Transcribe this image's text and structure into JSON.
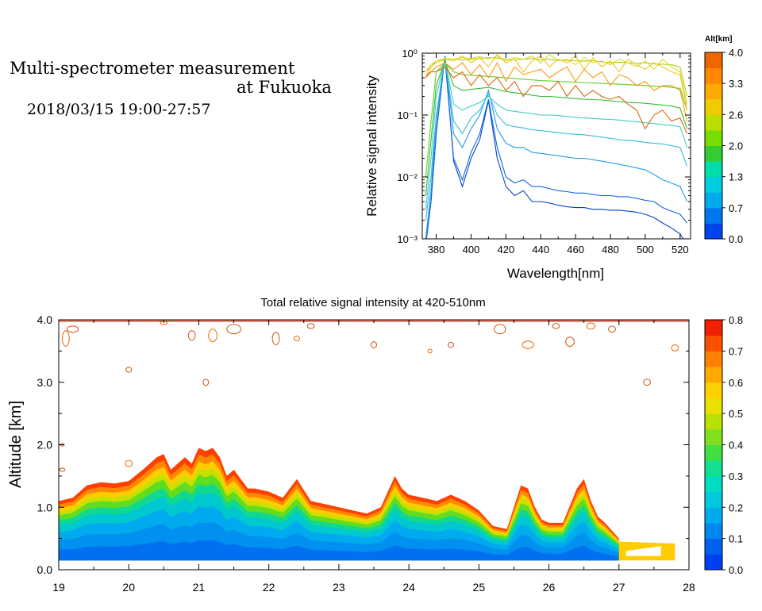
{
  "header": {
    "title_line1": "Multi-spectrometer measurement",
    "title_line2": "at Fukuoka",
    "datetime": "2018/03/15 19:00-27:57"
  },
  "chart_data": [
    {
      "type": "line",
      "xlabel": "Wavelength[nm]",
      "ylabel": "Relative signal intensity",
      "x_ticks": [
        "380",
        "400",
        "420",
        "440",
        "460",
        "480",
        "500",
        "520"
      ],
      "y_ticks": [
        "10⁻³",
        "10⁻²",
        "10⁻¹",
        "10⁰"
      ],
      "xlim": [
        372,
        526
      ],
      "ylim": [
        0.001,
        1
      ],
      "y_scale": "log",
      "colorbar": {
        "title": "Alt[km]",
        "tick_labels": [
          "0.0",
          "0.7",
          "1.3",
          "2.0",
          "2.6",
          "3.3",
          "4.0"
        ],
        "colors": [
          "#0044ee",
          "#0077ee",
          "#00aaee",
          "#00ccdd",
          "#00ddaa",
          "#33cc33",
          "#77dd00",
          "#bbdd00",
          "#eecc00",
          "#ffaa00",
          "#ff8800",
          "#ee6600"
        ]
      },
      "x": [
        374,
        377,
        380,
        385,
        390,
        395,
        400,
        405,
        410,
        415,
        420,
        425,
        430,
        435,
        440,
        445,
        450,
        455,
        460,
        465,
        470,
        475,
        480,
        485,
        490,
        495,
        500,
        505,
        510,
        515,
        520,
        524
      ],
      "series": [
        {
          "color": "#0044cc",
          "values": [
            0.0008,
            0.004,
            0.05,
            0.9,
            0.018,
            0.007,
            0.02,
            0.04,
            0.17,
            0.02,
            0.007,
            0.005,
            0.006,
            0.004,
            0.004,
            0.0038,
            0.0035,
            0.0033,
            0.0032,
            0.0032,
            0.003,
            0.003,
            0.0029,
            0.0029,
            0.0028,
            0.0027,
            0.0025,
            0.0022,
            0.0018,
            0.0015,
            0.0012,
            0.0008
          ]
        },
        {
          "color": "#1166dd",
          "values": [
            0.0008,
            0.004,
            0.05,
            0.9,
            0.02,
            0.009,
            0.025,
            0.05,
            0.18,
            0.03,
            0.01,
            0.008,
            0.009,
            0.007,
            0.007,
            0.0065,
            0.006,
            0.0058,
            0.0055,
            0.0055,
            0.0052,
            0.005,
            0.005,
            0.0048,
            0.0048,
            0.0045,
            0.0042,
            0.004,
            0.0032,
            0.0028,
            0.0025,
            0.0018
          ]
        },
        {
          "color": "#2299ee",
          "values": [
            0.001,
            0.006,
            0.08,
            0.9,
            0.05,
            0.03,
            0.06,
            0.1,
            0.25,
            0.06,
            0.035,
            0.03,
            0.03,
            0.025,
            0.024,
            0.023,
            0.022,
            0.021,
            0.02,
            0.02,
            0.019,
            0.018,
            0.017,
            0.016,
            0.015,
            0.014,
            0.013,
            0.011,
            0.009,
            0.008,
            0.007,
            0.004
          ]
        },
        {
          "color": "#33bbdd",
          "values": [
            0.002,
            0.01,
            0.1,
            0.85,
            0.08,
            0.05,
            0.09,
            0.12,
            0.22,
            0.1,
            0.07,
            0.065,
            0.062,
            0.058,
            0.056,
            0.054,
            0.052,
            0.05,
            0.049,
            0.048,
            0.046,
            0.044,
            0.042,
            0.04,
            0.039,
            0.038,
            0.036,
            0.035,
            0.034,
            0.032,
            0.03,
            0.015
          ]
        },
        {
          "color": "#44ccbb",
          "values": [
            0.003,
            0.02,
            0.2,
            0.8,
            0.15,
            0.12,
            0.14,
            0.16,
            0.2,
            0.15,
            0.12,
            0.115,
            0.11,
            0.105,
            0.1,
            0.1,
            0.098,
            0.095,
            0.092,
            0.09,
            0.088,
            0.086,
            0.085,
            0.083,
            0.08,
            0.078,
            0.075,
            0.073,
            0.07,
            0.068,
            0.065,
            0.03
          ]
        },
        {
          "color": "#33bb33",
          "values": [
            0.005,
            0.04,
            0.3,
            0.75,
            0.3,
            0.25,
            0.26,
            0.27,
            0.28,
            0.26,
            0.24,
            0.23,
            0.22,
            0.21,
            0.2,
            0.2,
            0.195,
            0.19,
            0.185,
            0.18,
            0.178,
            0.175,
            0.17,
            0.165,
            0.16,
            0.158,
            0.155,
            0.15,
            0.145,
            0.14,
            0.13,
            0.06
          ]
        },
        {
          "color": "#66cc22",
          "values": [
            0.01,
            0.08,
            0.5,
            0.7,
            0.5,
            0.45,
            0.44,
            0.43,
            0.42,
            0.41,
            0.4,
            0.39,
            0.38,
            0.37,
            0.36,
            0.355,
            0.35,
            0.345,
            0.34,
            0.335,
            0.33,
            0.325,
            0.32,
            0.315,
            0.31,
            0.305,
            0.3,
            0.295,
            0.29,
            0.28,
            0.27,
            0.12
          ]
        },
        {
          "color": "#aad022",
          "values": [
            0.4,
            0.6,
            0.75,
            0.8,
            0.8,
            0.78,
            0.8,
            0.82,
            0.85,
            0.83,
            0.8,
            0.78,
            0.8,
            0.82,
            0.78,
            0.8,
            0.76,
            0.77,
            0.75,
            0.74,
            0.76,
            0.72,
            0.7,
            0.71,
            0.7,
            0.68,
            0.7,
            0.67,
            0.66,
            0.65,
            0.6,
            0.2
          ]
        },
        {
          "color": "#dddd22",
          "values": [
            0.5,
            0.65,
            0.75,
            0.82,
            0.8,
            0.85,
            0.82,
            0.88,
            0.8,
            0.9,
            0.75,
            0.85,
            0.8,
            0.9,
            0.7,
            0.95,
            0.75,
            0.8,
            0.65,
            0.85,
            0.7,
            0.75,
            0.65,
            0.8,
            0.7,
            0.6,
            0.75,
            0.55,
            0.8,
            0.6,
            0.5,
            0.15
          ]
        },
        {
          "color": "#f5c51a",
          "values": [
            0.5,
            0.6,
            0.7,
            0.8,
            0.75,
            0.9,
            0.7,
            0.85,
            0.6,
            0.95,
            0.7,
            0.8,
            0.5,
            0.75,
            0.9,
            0.6,
            0.8,
            0.7,
            0.9,
            0.55,
            0.85,
            0.6,
            0.75,
            0.5,
            0.8,
            0.65,
            0.55,
            0.7,
            0.6,
            0.5,
            0.45,
            0.12
          ]
        },
        {
          "color": "#ff9911",
          "values": [
            0.45,
            0.5,
            0.6,
            0.7,
            0.55,
            0.7,
            0.45,
            0.65,
            0.4,
            0.7,
            0.35,
            0.6,
            0.45,
            0.5,
            0.55,
            0.4,
            0.5,
            0.6,
            0.35,
            0.55,
            0.4,
            0.5,
            0.3,
            0.45,
            0.4,
            0.3,
            0.35,
            0.25,
            0.3,
            0.3,
            0.25,
            0.08
          ]
        },
        {
          "color": "#dd6611",
          "values": [
            0.4,
            0.5,
            0.5,
            0.6,
            0.4,
            0.5,
            0.3,
            0.45,
            0.3,
            0.4,
            0.25,
            0.35,
            0.2,
            0.3,
            0.3,
            0.25,
            0.35,
            0.2,
            0.3,
            0.2,
            0.25,
            0.2,
            0.18,
            0.2,
            0.15,
            0.12,
            0.06,
            0.1,
            0.12,
            0.08,
            0.09,
            0.05
          ]
        }
      ]
    },
    {
      "type": "heatmap",
      "title": "Total relative signal intensity at 420-510nm",
      "ylabel": "Altitude [km]",
      "xlabel": "",
      "x_ticks": [
        "19",
        "20",
        "21",
        "22",
        "23",
        "24",
        "25",
        "26",
        "27",
        "28"
      ],
      "y_ticks": [
        "0.0",
        "1.0",
        "2.0",
        "3.0",
        "4.0"
      ],
      "xlim": [
        19,
        28
      ],
      "ylim": [
        0,
        4
      ],
      "colorbar": {
        "tick_labels": [
          "0.0",
          "0.1",
          "0.2",
          "0.3",
          "0.4",
          "0.5",
          "0.6",
          "0.7",
          "0.8"
        ],
        "colors": [
          "#0040f0",
          "#0060f0",
          "#0088f0",
          "#00aaee",
          "#00c8dd",
          "#00dcc0",
          "#10e090",
          "#40e040",
          "#80e020",
          "#b8e000",
          "#e8e000",
          "#ffd000",
          "#ffa800",
          "#ff8000",
          "#ff5000",
          "#f02000"
        ]
      },
      "cloud_top_km": {
        "t": [
          19.0,
          19.2,
          19.4,
          19.6,
          19.8,
          20.0,
          20.2,
          20.4,
          20.5,
          20.6,
          20.8,
          20.9,
          21.0,
          21.1,
          21.2,
          21.3,
          21.4,
          21.5,
          21.6,
          21.7,
          21.8,
          22.0,
          22.2,
          22.4,
          22.6,
          22.8,
          23.0,
          23.2,
          23.4,
          23.6,
          23.8,
          23.9,
          24.0,
          24.2,
          24.4,
          24.6,
          24.8,
          25.0,
          25.2,
          25.4,
          25.6,
          25.7,
          25.8,
          25.9,
          26.0,
          26.2,
          26.4,
          26.5,
          26.6,
          26.7,
          26.8,
          27.0
        ],
        "z": [
          1.1,
          1.15,
          1.35,
          1.4,
          1.38,
          1.42,
          1.6,
          1.8,
          1.85,
          1.6,
          1.8,
          1.7,
          1.95,
          1.9,
          1.95,
          1.8,
          1.5,
          1.6,
          1.45,
          1.3,
          1.3,
          1.25,
          1.15,
          1.45,
          1.1,
          1.05,
          1.0,
          0.95,
          0.9,
          1.0,
          1.5,
          1.3,
          1.2,
          1.15,
          1.1,
          1.2,
          1.1,
          0.95,
          0.7,
          0.65,
          1.35,
          1.3,
          1.0,
          0.8,
          0.75,
          0.75,
          1.3,
          1.45,
          1.1,
          0.85,
          0.75,
          0.5
        ]
      },
      "base_km": 0.15
    }
  ]
}
